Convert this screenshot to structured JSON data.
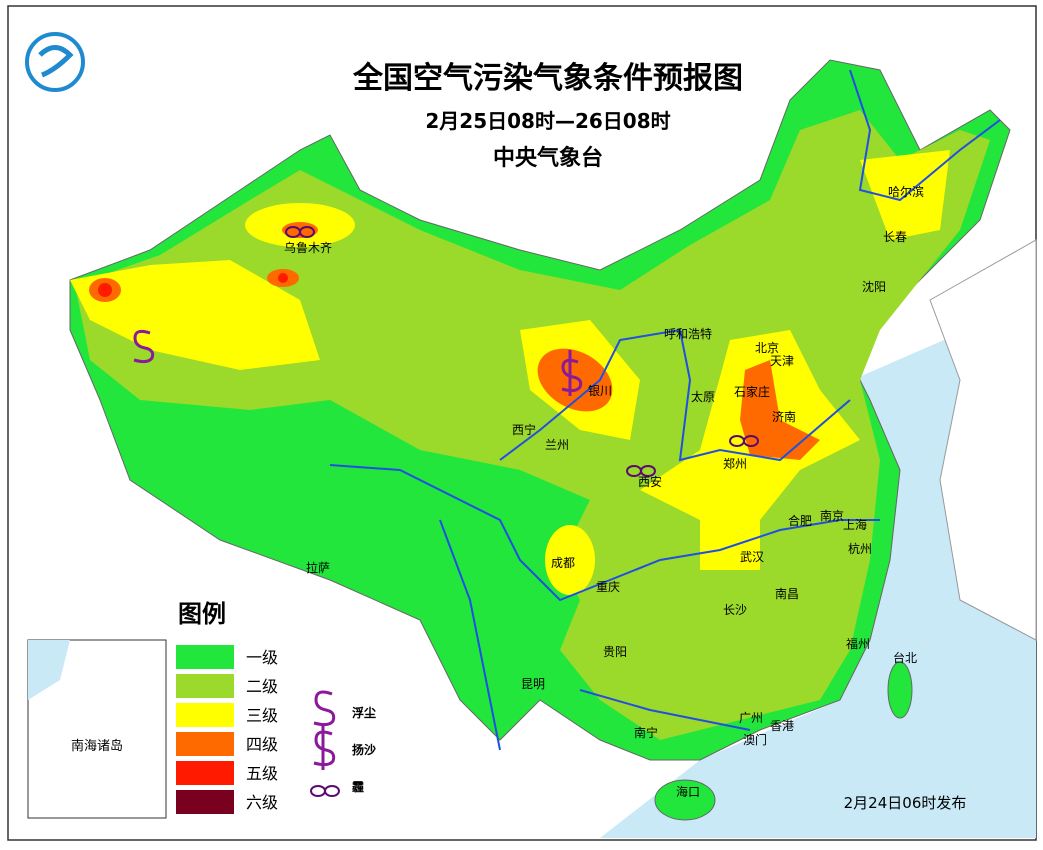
{
  "header": {
    "title": "全国空气污染气象条件预报图",
    "subtitle": "2月25日08时—26日08时",
    "agency": "中央气象台"
  },
  "cities": [
    "乌鲁木齐",
    "呼和浩特",
    "北京",
    "天津",
    "银川",
    "石家庄",
    "太原",
    "济南",
    "西宁",
    "兰州",
    "郑州",
    "西安",
    "合肥",
    "南京",
    "上海",
    "杭州",
    "成都",
    "武汉",
    "重庆",
    "拉萨",
    "南昌",
    "长沙",
    "贵阳",
    "福州",
    "台北",
    "昆明",
    "广州",
    "香港",
    "南宁",
    "澳门",
    "海口",
    "哈尔滨",
    "长春",
    "沈阳"
  ],
  "legend": {
    "title": "图例",
    "levels": [
      {
        "label": "一级",
        "color": "#22e63c"
      },
      {
        "label": "二级",
        "color": "#9bd92a"
      },
      {
        "label": "三级",
        "color": "#ffff00"
      },
      {
        "label": "四级",
        "color": "#ff6a00"
      },
      {
        "label": "五级",
        "color": "#ff1a00"
      },
      {
        "label": "六级",
        "color": "#7a0020"
      }
    ],
    "symbols": [
      {
        "label": "浮尘"
      },
      {
        "label": "扬沙"
      },
      {
        "label": "霾"
      }
    ]
  },
  "inset": {
    "label": "南海诸岛"
  },
  "footer": {
    "issued": "2月24日06时发布"
  }
}
